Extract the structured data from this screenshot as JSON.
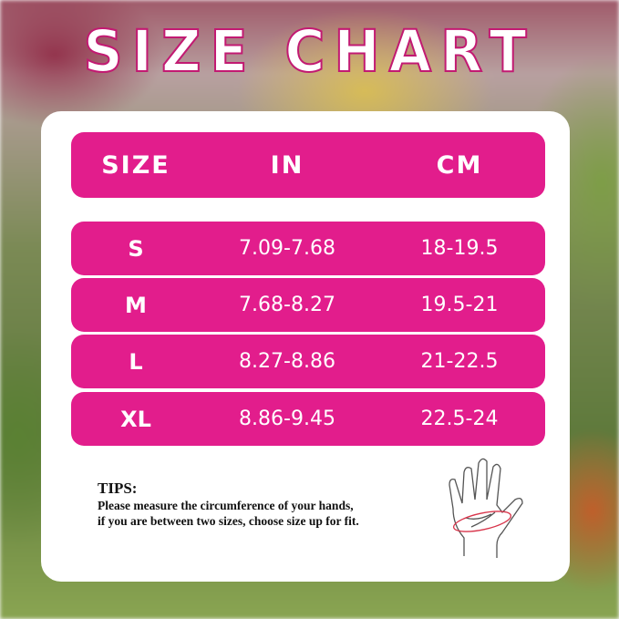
{
  "title": "SIZE CHART",
  "table": {
    "headers": [
      "SIZE",
      "IN",
      "CM"
    ],
    "rows": [
      {
        "size": "S",
        "in": "7.09-7.68",
        "cm": "18-19.5"
      },
      {
        "size": "M",
        "in": "7.68-8.27",
        "cm": "19.5-21"
      },
      {
        "size": "L",
        "in": "8.27-8.86",
        "cm": "21-22.5"
      },
      {
        "size": "XL",
        "in": "8.86-9.45",
        "cm": "22.5-24"
      }
    ]
  },
  "tips": {
    "heading": "TIPS:",
    "line1": "Please measure the circumference of your hands,",
    "line2": "if you are between two sizes, choose size up for fit."
  },
  "colors": {
    "accent": "#e21d8c",
    "card": "#ffffff"
  }
}
